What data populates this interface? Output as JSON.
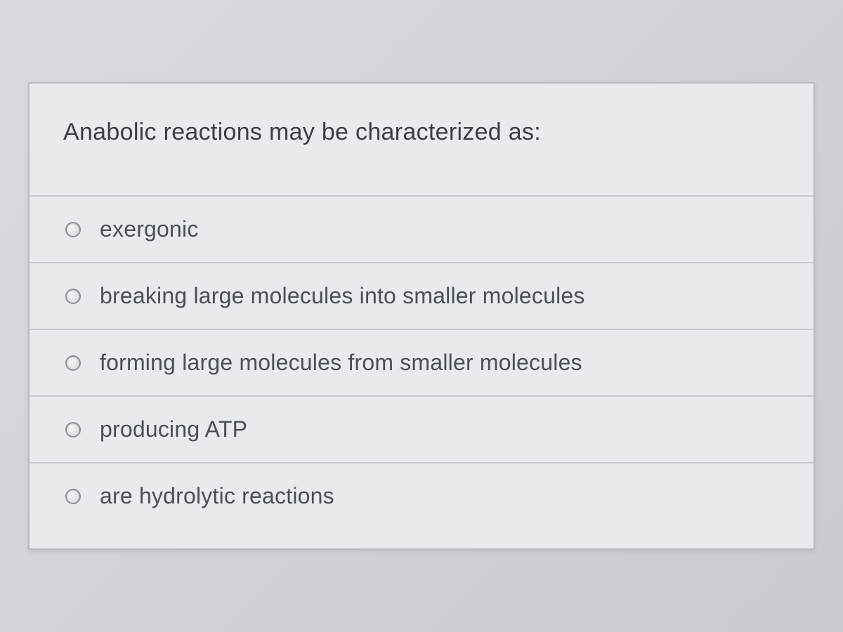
{
  "question": {
    "prompt": "Anabolic reactions may be characterized as:",
    "options": [
      {
        "label": "exergonic"
      },
      {
        "label": "breaking large molecules into smaller molecules"
      },
      {
        "label": "forming large molecules from smaller molecules"
      },
      {
        "label": "producing ATP"
      },
      {
        "label": "are hydrolytic reactions"
      }
    ]
  },
  "colors": {
    "background": "#e8eaed",
    "border": "#c8ccd0",
    "text_primary": "#3a3f44",
    "text_option": "#4a5058",
    "radio_border": "#8a9099"
  },
  "typography": {
    "question_fontsize": 34,
    "option_fontsize": 32,
    "font_family": "Segoe UI"
  }
}
